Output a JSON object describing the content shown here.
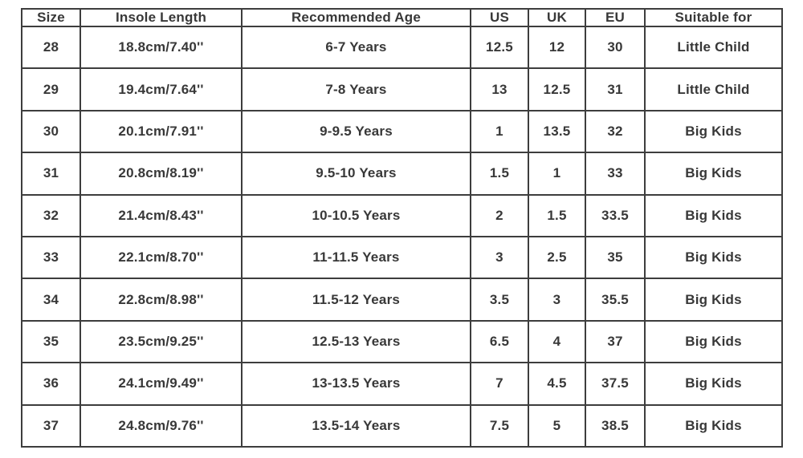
{
  "chart_data": {
    "type": "table",
    "title": "",
    "headers": [
      "Size",
      "Insole Length",
      "Recommended Age",
      "US",
      "UK",
      "EU",
      "Suitable for"
    ],
    "rows": [
      [
        "28",
        "18.8cm/7.40''",
        "6-7 Years",
        "12.5",
        "12",
        "30",
        "Little Child"
      ],
      [
        "29",
        "19.4cm/7.64''",
        "7-8 Years",
        "13",
        "12.5",
        "31",
        "Little Child"
      ],
      [
        "30",
        "20.1cm/7.91''",
        "9-9.5 Years",
        "1",
        "13.5",
        "32",
        "Big Kids"
      ],
      [
        "31",
        "20.8cm/8.19''",
        "9.5-10 Years",
        "1.5",
        "1",
        "33",
        "Big Kids"
      ],
      [
        "32",
        "21.4cm/8.43''",
        "10-10.5 Years",
        "2",
        "1.5",
        "33.5",
        "Big Kids"
      ],
      [
        "33",
        "22.1cm/8.70''",
        "11-11.5 Years",
        "3",
        "2.5",
        "35",
        "Big Kids"
      ],
      [
        "34",
        "22.8cm/8.98''",
        "11.5-12 Years",
        "3.5",
        "3",
        "35.5",
        "Big Kids"
      ],
      [
        "35",
        "23.5cm/9.25''",
        "12.5-13 Years",
        "6.5",
        "4",
        "37",
        "Big Kids"
      ],
      [
        "36",
        "24.1cm/9.49''",
        "13-13.5 Years",
        "7",
        "4.5",
        "37.5",
        "Big Kids"
      ],
      [
        "37",
        "24.8cm/9.76''",
        "13.5-14 Years",
        "7.5",
        "5",
        "38.5",
        "Big Kids"
      ]
    ],
    "colors": {
      "border": "#3d3d3d",
      "text": "#383838",
      "background": "#ffffff"
    }
  }
}
